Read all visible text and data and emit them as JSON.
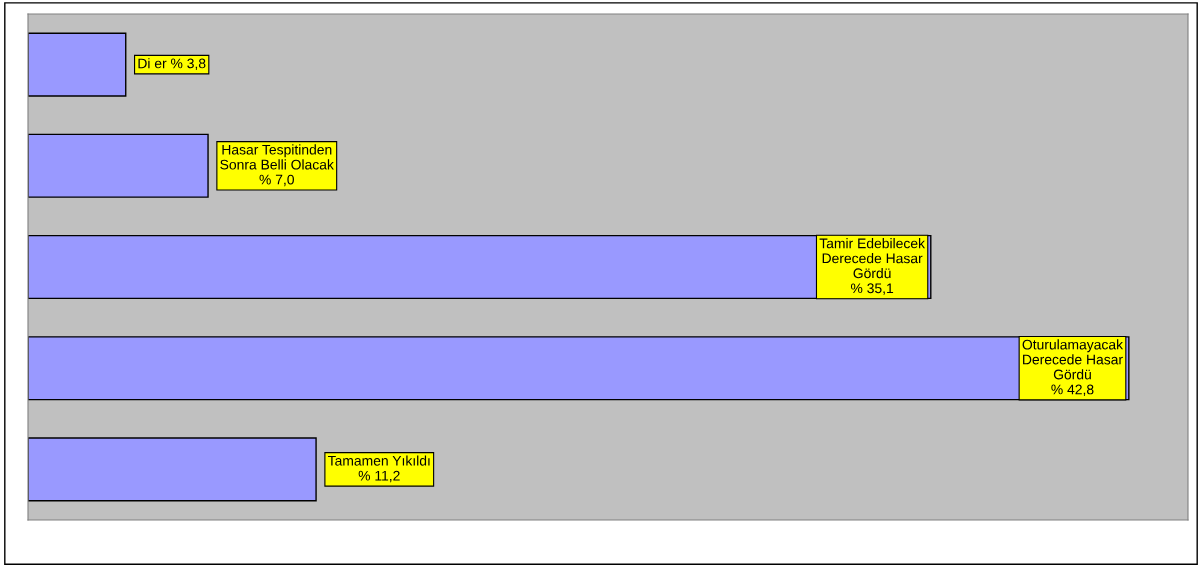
{
  "chart_data": {
    "type": "bar",
    "orientation": "horizontal",
    "categories": [
      null,
      null,
      null,
      null,
      null
    ],
    "values": [
      3.8,
      7.0,
      35.1,
      42.8,
      11.2
    ],
    "value_labels": [
      "Di er % 3,8",
      "Hasar Tespitinden\nSonra Belli Olacak\n% 7,0",
      "Tamir Edebilecek\nDerecede Hasar\nGördü\n% 35,1",
      "Oturulamayacak\nDerecede Hasar\nGördü\n% 42,8",
      "Tamamen Yıkıldı\n% 11,2"
    ],
    "color": "#9999ff",
    "xlim": [
      0,
      45.1
    ],
    "tick_labels": false,
    "grid": false,
    "legend": false
  }
}
